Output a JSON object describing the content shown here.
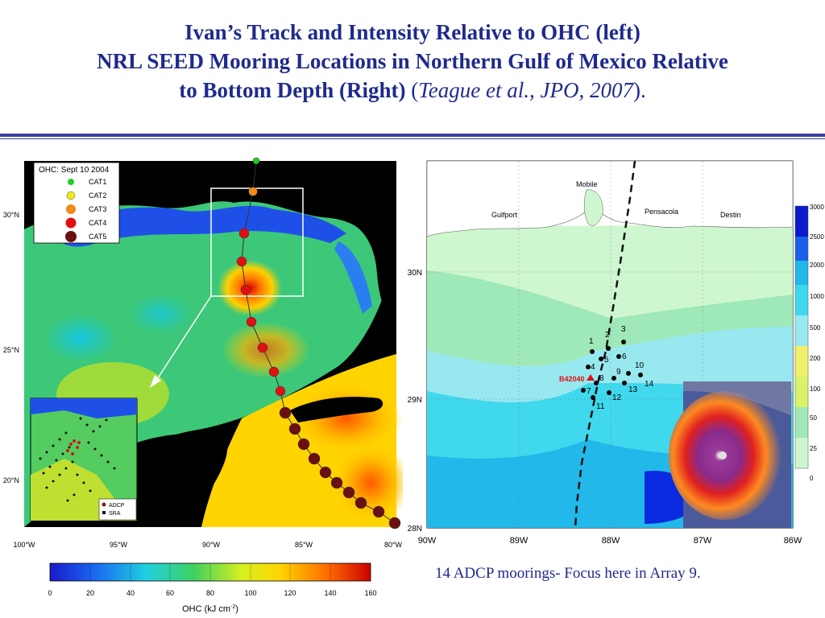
{
  "title": {
    "line1": "Ivan’s Track and Intensity Relative to OHC (left)",
    "line2": "NRL SEED Mooring Locations in Northern Gulf of Mexico Relative",
    "line3_bold": "to Bottom Depth (Right)",
    "line3_open": " (",
    "line3_italic": "Teague et al., JPO, 2007",
    "line3_close": ")."
  },
  "left_map": {
    "lat_labels": [
      "30°N",
      "25°N",
      "20°N"
    ],
    "lon_labels": [
      "100°W",
      "95°W",
      "90°W",
      "85°W",
      "80°W"
    ],
    "legend": {
      "title": "OHC: Sept 10 2004",
      "items": [
        {
          "label": "CAT1",
          "color": "#22cc22"
        },
        {
          "label": "CAT2",
          "color": "#f2e81e"
        },
        {
          "label": "CAT3",
          "color": "#f08a1a"
        },
        {
          "label": "CAT4",
          "color": "#e01010"
        },
        {
          "label": "CAT5",
          "color": "#6a1010"
        }
      ]
    },
    "inset_legend": [
      {
        "label": "ADCP",
        "color": "#8b1a1a"
      },
      {
        "label": "SRA",
        "color": "#111111"
      }
    ]
  },
  "colorbar": {
    "ticks": [
      "0",
      "20",
      "40",
      "60",
      "80",
      "100",
      "120",
      "140",
      "160"
    ],
    "label": "OHC (kJ cm",
    "label_sup": "-2",
    "label_end": ")"
  },
  "right_map": {
    "lat_labels": [
      "30N",
      "29N",
      "28N"
    ],
    "lon_labels": [
      "90W",
      "89W",
      "88W",
      "87W",
      "86W"
    ],
    "places": [
      "Mobile",
      "Gulfport",
      "Pensacola",
      "Destin"
    ],
    "buoy_label": "B42040",
    "moorings": [
      "1",
      "2",
      "3",
      "4",
      "5",
      "6",
      "7",
      "8",
      "9",
      "10",
      "11",
      "12",
      "13",
      "14"
    ],
    "depth_scale": [
      "3000",
      "2500",
      "2000",
      "1000",
      "500",
      "200",
      "100",
      "50",
      "25",
      "0"
    ]
  },
  "caption": "14 ADCP moorings- Focus here in Array 9."
}
